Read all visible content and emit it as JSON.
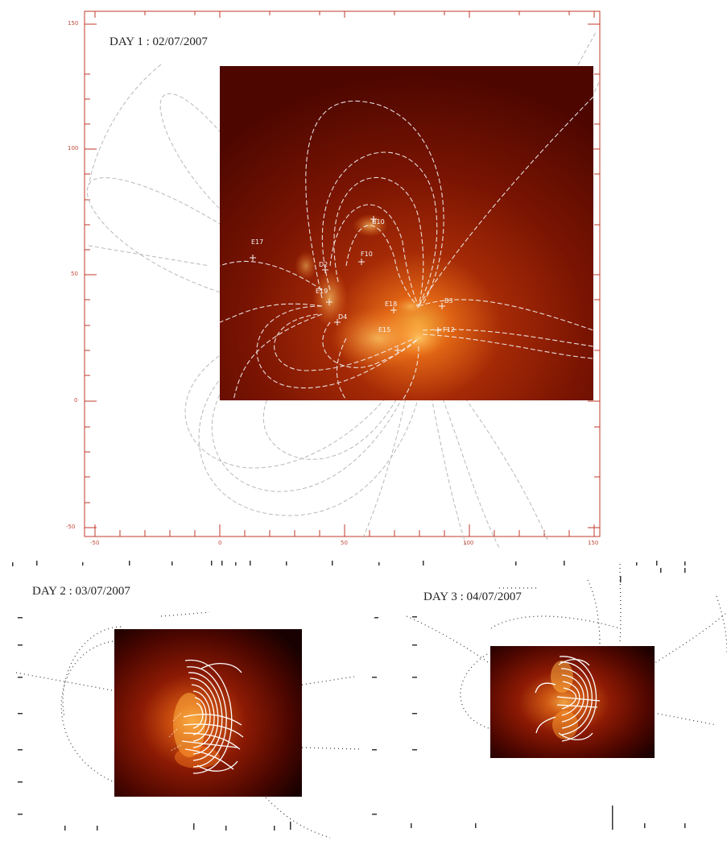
{
  "panels": [
    {
      "id": "day1",
      "title": "DAY 1 : 02/07/2007",
      "x_ticks": [
        "-50",
        "0",
        "50",
        "100",
        "150"
      ],
      "y_ticks": [
        "150",
        "100",
        "50",
        "0",
        "-50"
      ],
      "region_labels": [
        "E17",
        "B10",
        "D2",
        "F10",
        "E19",
        "D4",
        "B3",
        "E18",
        "F12",
        "E15"
      ],
      "axis_color": "#c0392b"
    },
    {
      "id": "day2",
      "title": "DAY 2 : 03/07/2007"
    },
    {
      "id": "day3",
      "title": "DAY 3 : 04/07/2007"
    }
  ],
  "colors": {
    "solar_dark": "#5a0800",
    "solar_mid": "#a01c04",
    "solar_bright": "#f0a020",
    "field_lines": "#ffffff",
    "outer_lines": "#b0b0b0"
  }
}
